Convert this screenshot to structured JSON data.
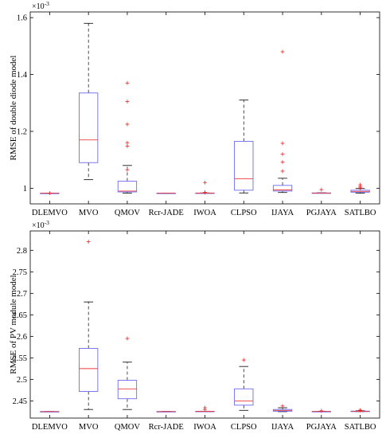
{
  "chart_data": [
    {
      "type": "box",
      "ylabel": "RMSE of double diode model",
      "exponent_label": "×10",
      "exponent_power": "-3",
      "categories": [
        "DLEMVO",
        "MVO",
        "QMOV",
        "Rcr-JADE",
        "IWOA",
        "CLPSO",
        "IJAYA",
        "PGJAYA",
        "SATLBO"
      ],
      "ylim": [
        0.945,
        1.62
      ],
      "yticks": [
        1,
        1.2,
        1.4,
        1.6
      ],
      "ytick_labels": [
        "1",
        "1.2",
        "1.4",
        "1.6"
      ],
      "boxes": [
        {
          "min": 0.9825,
          "q1": 0.9825,
          "median": 0.9825,
          "q3": 0.9826,
          "max": 0.9826,
          "outliers": [
            0.9826
          ]
        },
        {
          "min": 1.03,
          "q1": 1.09,
          "median": 1.17,
          "q3": 1.335,
          "max": 1.58,
          "outliers": []
        },
        {
          "min": 0.983,
          "q1": 0.987,
          "median": 0.99,
          "q3": 1.025,
          "max": 1.08,
          "outliers": [
            1.37,
            1.305,
            1.225,
            1.16,
            1.148,
            1.065
          ]
        },
        {
          "min": 0.9825,
          "q1": 0.9825,
          "median": 0.9826,
          "q3": 0.9828,
          "max": 0.9828,
          "outliers": []
        },
        {
          "min": 0.9825,
          "q1": 0.9825,
          "median": 0.9827,
          "q3": 0.9832,
          "max": 0.9835,
          "outliers": [
            1.02,
            0.9855,
            0.9848
          ]
        },
        {
          "min": 0.9835,
          "q1": 0.993,
          "median": 1.033,
          "q3": 1.165,
          "max": 1.31,
          "outliers": []
        },
        {
          "min": 0.985,
          "q1": 0.99,
          "median": 0.994,
          "q3": 1.01,
          "max": 1.035,
          "outliers": [
            1.48,
            1.158,
            1.12,
            1.092,
            1.06
          ]
        },
        {
          "min": 0.9825,
          "q1": 0.9826,
          "median": 0.983,
          "q3": 0.9835,
          "max": 0.984,
          "outliers": [
            0.995
          ]
        },
        {
          "min": 0.9825,
          "q1": 0.986,
          "median": 0.989,
          "q3": 0.993,
          "max": 0.999,
          "outliers": [
            1.012,
            1.006,
            1.001
          ]
        }
      ]
    },
    {
      "type": "box",
      "ylabel": "RMSE of PV module model",
      "exponent_label": "×10",
      "exponent_power": "-3",
      "categories": [
        "DLEMVO",
        "MVO",
        "QMOV",
        "Rcr-JADE",
        "IWOA",
        "CLPSO",
        "IJAYA",
        "PGJAYA",
        "SATLBO"
      ],
      "ylim": [
        2.41,
        2.845
      ],
      "yticks": [
        2.45,
        2.5,
        2.55,
        2.6,
        2.65,
        2.7,
        2.75,
        2.8
      ],
      "ytick_labels": [
        "2.45",
        "2.5",
        "2.55",
        "2.6",
        "2.65",
        "2.7",
        "2.75",
        "2.8"
      ],
      "boxes": [
        {
          "min": 2.4251,
          "q1": 2.4251,
          "median": 2.4251,
          "q3": 2.4252,
          "max": 2.4252,
          "outliers": []
        },
        {
          "min": 2.43,
          "q1": 2.472,
          "median": 2.525,
          "q3": 2.572,
          "max": 2.68,
          "outliers": [
            2.82
          ]
        },
        {
          "min": 2.43,
          "q1": 2.455,
          "median": 2.478,
          "q3": 2.498,
          "max": 2.54,
          "outliers": [
            2.595
          ]
        },
        {
          "min": 2.4251,
          "q1": 2.4251,
          "median": 2.4252,
          "q3": 2.4253,
          "max": 2.4254,
          "outliers": []
        },
        {
          "min": 2.4251,
          "q1": 2.4252,
          "median": 2.4255,
          "q3": 2.4258,
          "max": 2.426,
          "outliers": [
            2.434,
            2.43
          ]
        },
        {
          "min": 2.428,
          "q1": 2.44,
          "median": 2.45,
          "q3": 2.478,
          "max": 2.53,
          "outliers": [
            2.545
          ]
        },
        {
          "min": 2.425,
          "q1": 2.426,
          "median": 2.428,
          "q3": 2.43,
          "max": 2.434,
          "outliers": [
            2.438
          ]
        },
        {
          "min": 2.4251,
          "q1": 2.4252,
          "median": 2.4253,
          "q3": 2.4255,
          "max": 2.4257,
          "outliers": [
            2.427
          ]
        },
        {
          "min": 2.4251,
          "q1": 2.4253,
          "median": 2.4256,
          "q3": 2.4262,
          "max": 2.427,
          "outliers": [
            2.4285,
            2.428
          ]
        }
      ]
    }
  ]
}
